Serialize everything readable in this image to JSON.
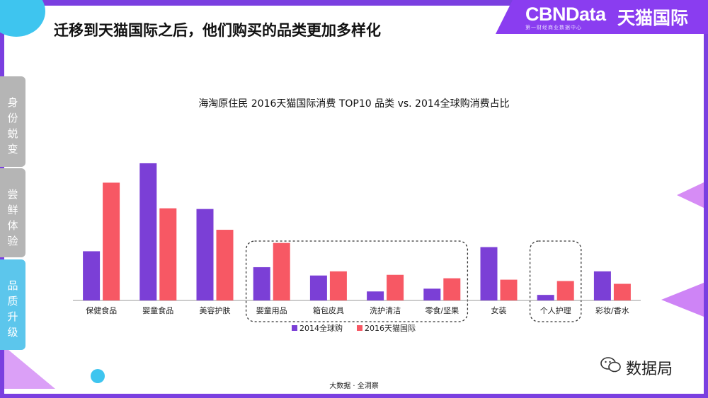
{
  "header": {
    "title": "迁移到天猫国际之后，他们购买的品类更加多样化",
    "logo_cbn": "CBNData",
    "logo_sub": "第一财经商业数据中心",
    "logo_tmall": "天猫国际"
  },
  "sidebar": {
    "tabs": [
      {
        "label": "身份蜕变",
        "active": false
      },
      {
        "label": "尝鲜体验",
        "active": false
      },
      {
        "label": "品质升级",
        "active": true
      }
    ]
  },
  "footer": {
    "text": "大数据 · 全洞察",
    "brand": "数据局"
  },
  "colors": {
    "series_2014": "#7b3fd6",
    "series_2016": "#f75864",
    "accent_purple": "#7a3fe0",
    "accent_blue": "#3ec5ef"
  },
  "chart_data": {
    "type": "bar",
    "title": "海淘原住民 2016天猫国际消费 TOP10 品类 vs. 2014全球购消费占比",
    "categories": [
      "保健食品",
      "婴童食品",
      "美容护肤",
      "婴童用品",
      "箱包皮具",
      "洗护清洁",
      "零食/坚果",
      "女装",
      "个人护理",
      "彩妆/香水"
    ],
    "series": [
      {
        "name": "2014全球购",
        "values": [
          7.1,
          19.8,
          13.2,
          4.8,
          3.6,
          1.3,
          1.7,
          7.7,
          0.8,
          4.2
        ]
      },
      {
        "name": "2016天猫国际",
        "values": [
          17.0,
          13.3,
          10.2,
          8.3,
          4.2,
          3.7,
          3.2,
          3.0,
          2.8,
          2.4
        ]
      }
    ],
    "ylim": [
      0,
      20
    ],
    "grid": false,
    "legend": "bottom-center",
    "highlighted_groups": [
      [
        3,
        6
      ],
      [
        8,
        8
      ]
    ]
  }
}
